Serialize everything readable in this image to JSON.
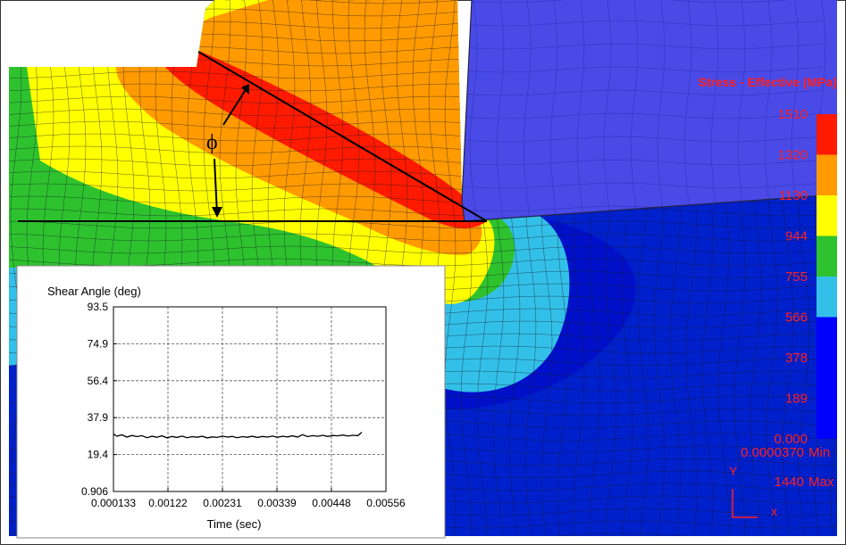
{
  "palette": {
    "band_1": "#0020cc",
    "band_2": "#33c0e8",
    "band_3": "#2ec22e",
    "band_4": "#ffff00",
    "band_5": "#ff9a00",
    "band_6": "#ff1a00",
    "tool_blue": "#4a4ae6",
    "workpiece_dark": "#0010c8",
    "mesh_line": "#1a1a2a",
    "legend_text": "#ff2020"
  },
  "annotation": {
    "angle_symbol": "ϕ"
  },
  "legend": {
    "title": "Stress - Effective (MPa)",
    "levels": [
      {
        "label": "1510",
        "color": "#ff1a00"
      },
      {
        "label": "1320",
        "color": "#ff9a00"
      },
      {
        "label": "1130",
        "color": "#ffff00"
      },
      {
        "label": "944",
        "color": "#2ec22e"
      },
      {
        "label": "755",
        "color": "#33c0e8"
      },
      {
        "label": "566",
        "color": "#0000ff"
      },
      {
        "label": "378",
        "color": "#0000ff"
      },
      {
        "label": "189",
        "color": "#0000ff"
      },
      {
        "label": "0.000",
        "color": "#0000ff"
      }
    ],
    "min_label": "0.0000370",
    "min_word": "Min",
    "max_label": "1440",
    "max_word": "Max",
    "axis_y": "Y",
    "axis_x": "x"
  },
  "chart_data": {
    "type": "line",
    "title": "Shear Angle (deg)",
    "xlabel": "Time (sec)",
    "ylabel": "",
    "x_ticks": [
      "0.000133",
      "0.00122",
      "0.00231",
      "0.00339",
      "0.00448",
      "0.00556"
    ],
    "y_ticks": [
      "0.906",
      "19.4",
      "37.9",
      "56.4",
      "74.9",
      "93.5"
    ],
    "xlim": [
      0.000133,
      0.00556
    ],
    "ylim": [
      0.906,
      93.5
    ],
    "grid": true,
    "series": [
      {
        "x": [
          0.000133,
          0.0002,
          0.0003,
          0.0004,
          0.0005,
          0.0006,
          0.0007,
          0.0008,
          0.0009,
          0.001,
          0.0011,
          0.0012,
          0.0013,
          0.0014,
          0.0015,
          0.0016,
          0.0017,
          0.0018,
          0.0019,
          0.002,
          0.0021,
          0.0022,
          0.0023,
          0.0024,
          0.0025,
          0.0026,
          0.0027,
          0.0028,
          0.0029,
          0.003,
          0.0031,
          0.0032,
          0.0033,
          0.0034,
          0.0035,
          0.0036,
          0.0037,
          0.0038,
          0.0039,
          0.004,
          0.0041,
          0.0042,
          0.0043,
          0.0044,
          0.0045,
          0.0046,
          0.0047,
          0.0048,
          0.0049,
          0.005,
          0.00508
        ],
        "y": [
          29.8,
          28.6,
          29.3,
          28.2,
          29.0,
          28.4,
          28.9,
          27.9,
          28.6,
          28.1,
          28.8,
          27.8,
          28.5,
          28.0,
          28.7,
          27.9,
          28.4,
          28.1,
          28.6,
          27.8,
          28.3,
          28.0,
          28.7,
          28.2,
          28.5,
          27.9,
          28.4,
          28.1,
          28.6,
          28.0,
          28.5,
          28.2,
          28.7,
          28.1,
          28.6,
          28.3,
          28.8,
          28.2,
          29.4,
          28.4,
          28.9,
          28.6,
          29.1,
          28.5,
          29.0,
          28.8,
          29.2,
          28.7,
          29.1,
          28.9,
          30.6
        ]
      }
    ]
  }
}
